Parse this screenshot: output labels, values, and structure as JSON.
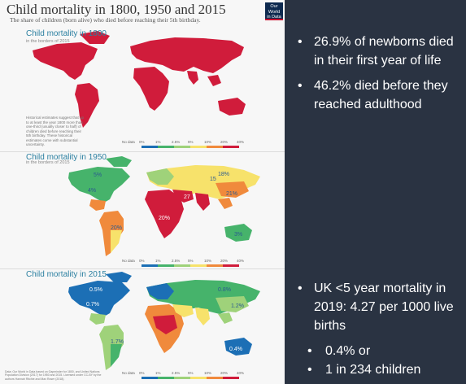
{
  "chart": {
    "title": "Child mortality in 1800, 1950 and 2015",
    "subtitle": "The share of children (born alive) who died before reaching their 5th birthday.",
    "logo": [
      "Our World",
      "in Data"
    ],
    "colors": {
      "red": "#d01c3b",
      "darkred": "#a50f2d",
      "orange": "#f08a3c",
      "yellow": "#f7e26b",
      "lightgreen": "#9fd27a",
      "green": "#46b36b",
      "blue": "#1c6fb5",
      "teal": "#38a7a4"
    },
    "legend": {
      "no_data": "No data",
      "ticks": [
        "0%",
        "1%",
        "2.5%",
        "5%",
        "10%",
        "20%",
        "40%"
      ]
    },
    "maps": [
      {
        "label": "Child mortality in 1800",
        "sub": "in the borders of 2015",
        "note": "Historical estimates suggest that up to at least the year 1800 more than one-third (usually closer to half) of children died before reaching their 5th birthday. These historical estimates come with substantial uncertainty."
      },
      {
        "label": "Child mortality in 1950",
        "sub": "in the borders of 2015",
        "values": [
          "5%",
          "4%",
          "18%",
          "20%",
          "15",
          "27",
          "21%",
          "20%",
          "3%"
        ]
      },
      {
        "label": "Child mortality in 2015",
        "sub": "",
        "values": [
          "0.5%",
          "0.7%",
          "0.8%",
          "1.2%",
          "1.7%",
          "0.4%"
        ],
        "footer": "Data: Our World in Data based on Gapminder for 1800, and United Nations Population Division (2017) for 1950 and 2015. Licensed under CC-BY by the authors Hannah Ritchie and Max Roser (2018)."
      }
    ]
  },
  "facts_top": [
    "26.9% of newborns died in their first year of life",
    "46.2% died before they reached adulthood"
  ],
  "facts_bottom": {
    "main": "UK <5 year mortality in 2019: 4.27 per 1000 live births",
    "subs": [
      "0.4% or",
      "1 in 234 children"
    ]
  }
}
